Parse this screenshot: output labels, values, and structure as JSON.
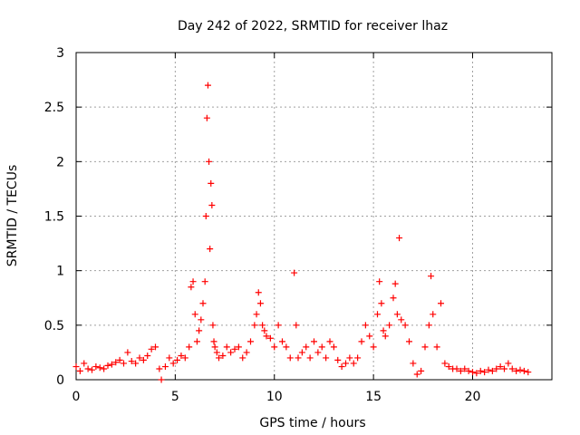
{
  "chart_data": {
    "type": "scatter",
    "title": "Day 242 of 2022, SRMTID for receiver lhaz",
    "xlabel": "GPS time / hours",
    "ylabel": "SRMTID / TECUs",
    "xlim": [
      0,
      24
    ],
    "ylim": [
      0,
      3
    ],
    "xticks": [
      0,
      5,
      10,
      15,
      20
    ],
    "xtick_labels": [
      "0",
      "5",
      "10",
      "15",
      "20"
    ],
    "yticks": [
      0,
      0.5,
      1,
      1.5,
      2,
      2.5,
      3
    ],
    "ytick_labels": [
      "0",
      "0.5",
      "1",
      "1.5",
      "2",
      "2.5",
      "3"
    ],
    "grid": true,
    "marker": "+",
    "series": [
      {
        "name": "SRMTID",
        "color": "#ff0000",
        "x": [
          0.0,
          0.2,
          0.4,
          0.6,
          0.8,
          1.0,
          1.2,
          1.4,
          1.6,
          1.8,
          2.0,
          2.2,
          2.4,
          2.6,
          2.8,
          3.0,
          3.2,
          3.4,
          3.6,
          3.8,
          4.0,
          4.2,
          4.3,
          4.5,
          4.7,
          4.9,
          5.1,
          5.3,
          5.5,
          5.7,
          5.8,
          5.9,
          6.0,
          6.1,
          6.2,
          6.3,
          6.4,
          6.5,
          6.55,
          6.6,
          6.65,
          6.7,
          6.75,
          6.8,
          6.85,
          6.9,
          6.95,
          7.0,
          7.1,
          7.2,
          7.4,
          7.6,
          7.8,
          8.0,
          8.2,
          8.4,
          8.6,
          8.8,
          9.0,
          9.1,
          9.2,
          9.3,
          9.4,
          9.5,
          9.6,
          9.8,
          10.0,
          10.2,
          10.4,
          10.6,
          10.8,
          11.0,
          11.1,
          11.2,
          11.4,
          11.6,
          11.8,
          12.0,
          12.2,
          12.4,
          12.6,
          12.8,
          13.0,
          13.2,
          13.4,
          13.6,
          13.8,
          14.0,
          14.2,
          14.4,
          14.6,
          14.8,
          15.0,
          15.2,
          15.3,
          15.4,
          15.5,
          15.6,
          15.8,
          16.0,
          16.1,
          16.2,
          16.3,
          16.4,
          16.6,
          16.8,
          17.0,
          17.2,
          17.4,
          17.6,
          17.8,
          17.9,
          18.0,
          18.2,
          18.4,
          18.6,
          18.8,
          19.0,
          19.2,
          19.4,
          19.6,
          19.8,
          20.0,
          20.2,
          20.4,
          20.6,
          20.8,
          21.0,
          21.2,
          21.4,
          21.6,
          21.8,
          22.0,
          22.2,
          22.4,
          22.6,
          22.8
        ],
        "y": [
          0.12,
          0.08,
          0.15,
          0.1,
          0.09,
          0.12,
          0.11,
          0.1,
          0.13,
          0.14,
          0.16,
          0.18,
          0.15,
          0.25,
          0.17,
          0.15,
          0.2,
          0.18,
          0.22,
          0.28,
          0.3,
          0.1,
          0.0,
          0.12,
          0.2,
          0.15,
          0.18,
          0.22,
          0.2,
          0.3,
          0.85,
          0.9,
          0.6,
          0.35,
          0.45,
          0.55,
          0.7,
          0.9,
          1.5,
          2.4,
          2.7,
          2.0,
          1.2,
          1.8,
          1.6,
          0.5,
          0.35,
          0.3,
          0.25,
          0.2,
          0.22,
          0.3,
          0.25,
          0.28,
          0.3,
          0.2,
          0.25,
          0.35,
          0.5,
          0.6,
          0.8,
          0.7,
          0.5,
          0.45,
          0.4,
          0.38,
          0.3,
          0.5,
          0.35,
          0.3,
          0.2,
          0.98,
          0.5,
          0.2,
          0.25,
          0.3,
          0.2,
          0.35,
          0.25,
          0.3,
          0.2,
          0.35,
          0.3,
          0.18,
          0.12,
          0.15,
          0.2,
          0.15,
          0.2,
          0.35,
          0.5,
          0.4,
          0.3,
          0.6,
          0.9,
          0.7,
          0.45,
          0.4,
          0.5,
          0.75,
          0.88,
          0.6,
          1.3,
          0.55,
          0.5,
          0.35,
          0.15,
          0.05,
          0.08,
          0.3,
          0.5,
          0.95,
          0.6,
          0.3,
          0.7,
          0.15,
          0.12,
          0.1,
          0.1,
          0.08,
          0.1,
          0.08,
          0.07,
          0.06,
          0.08,
          0.07,
          0.09,
          0.08,
          0.1,
          0.12,
          0.1,
          0.15,
          0.1,
          0.08,
          0.09,
          0.08,
          0.07
        ]
      }
    ]
  }
}
